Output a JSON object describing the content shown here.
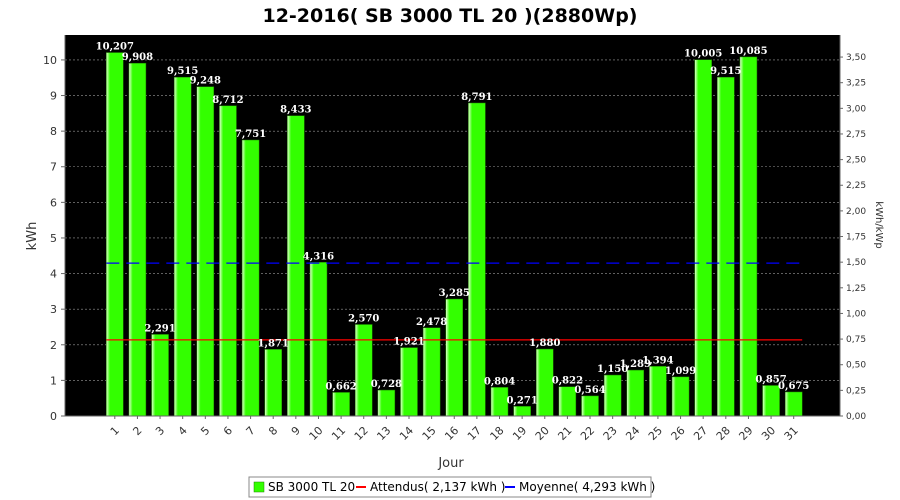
{
  "chart_data": {
    "type": "bar",
    "title": "12-2016( SB 3000 TL 20 )(2880Wp)",
    "xlabel": "Jour",
    "ylabel": "kWh",
    "ylabel_right": "kWh/kWp",
    "categories": [
      "1",
      "2",
      "3",
      "4",
      "5",
      "6",
      "7",
      "8",
      "9",
      "10",
      "11",
      "12",
      "13",
      "14",
      "15",
      "16",
      "17",
      "18",
      "19",
      "20",
      "21",
      "22",
      "23",
      "24",
      "25",
      "26",
      "27",
      "28",
      "29",
      "30",
      "31"
    ],
    "series": [
      {
        "name": "SB 3000 TL 20",
        "values": [
          10.207,
          9.908,
          2.291,
          9.515,
          9.248,
          8.712,
          7.751,
          1.871,
          8.433,
          4.316,
          0.662,
          2.57,
          0.728,
          1.921,
          2.478,
          3.285,
          8.791,
          0.804,
          0.271,
          1.88,
          0.822,
          0.564,
          1.15,
          1.289,
          1.394,
          1.099,
          10.005,
          9.515,
          10.085,
          0.857,
          0.675
        ],
        "labels": [
          "10,207",
          "9,908",
          "2,291",
          "9,515",
          "9,248",
          "8,712",
          "7,751",
          "1,871",
          "8,433",
          "4,316",
          "0,662",
          "2,570",
          "0,728",
          "1,921",
          "2,478",
          "3,285",
          "8,791",
          "0,804",
          "0,271",
          "1,880",
          "0,822",
          "0,564",
          "1,150",
          "1,289",
          "1,394",
          "1,099",
          "10,005",
          "9,515",
          "10,085",
          "0,857",
          "0,675"
        ],
        "color": "#33ff00"
      }
    ],
    "reference_lines": [
      {
        "name": "Attendus( 2,137 kWh )",
        "value": 2.137,
        "color": "#ff0000",
        "style": "solid"
      },
      {
        "name": "Moyenne( 4,293 kWh )",
        "value": 4.293,
        "color": "#0000ff",
        "style": "dashed"
      }
    ],
    "ylim": [
      0,
      10.7
    ],
    "yticks": [
      0,
      1,
      2,
      3,
      4,
      5,
      6,
      7,
      8,
      9,
      10
    ],
    "ylim_right": [
      0,
      3.715
    ],
    "yticks_right": [
      "0,00",
      "0,25",
      "0,50",
      "0,75",
      "1,00",
      "1,25",
      "1,50",
      "1,75",
      "2,00",
      "2,25",
      "2,50",
      "2,75",
      "3,00",
      "3,25",
      "3,50"
    ],
    "grid": true,
    "plot_background": "#000000",
    "legend_position": "bottom"
  }
}
